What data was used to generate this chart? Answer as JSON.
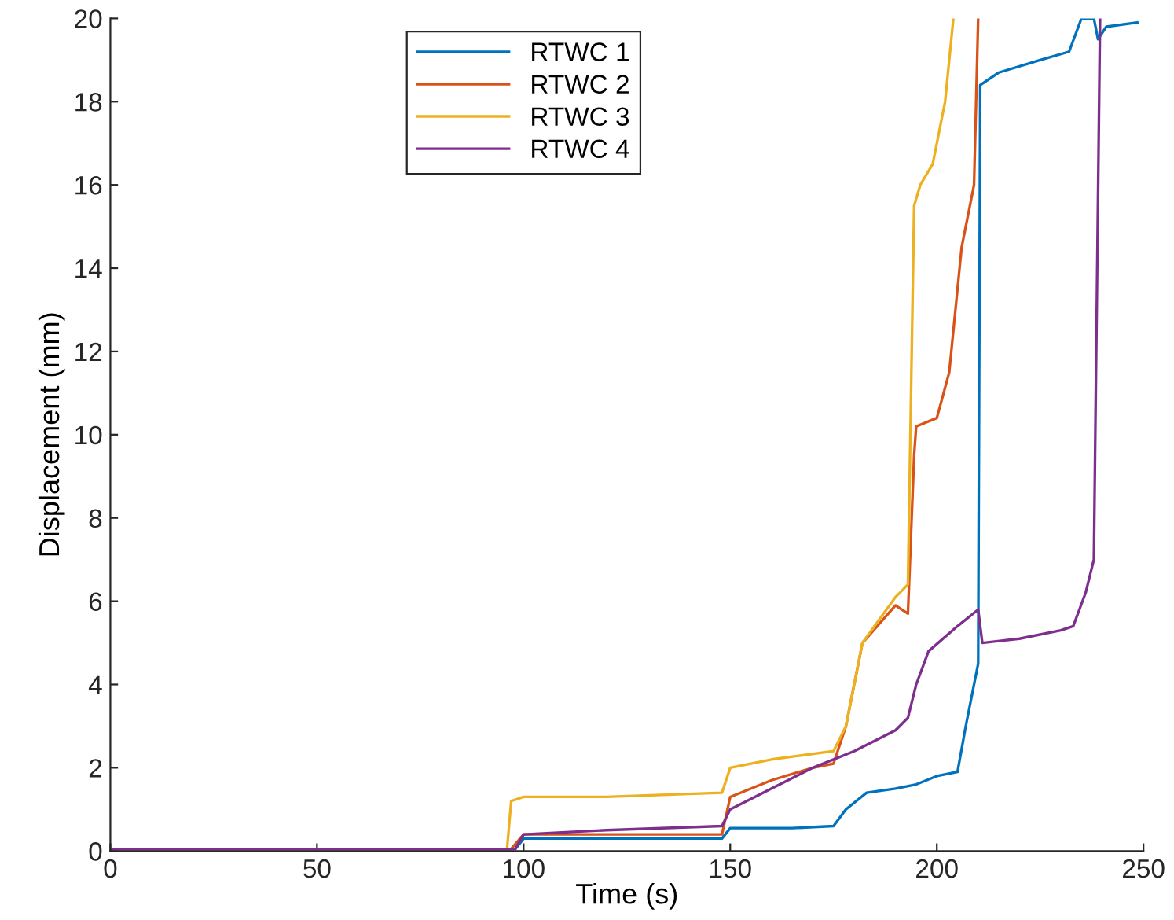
{
  "chart_data": {
    "type": "line",
    "xlabel": "Time (s)",
    "ylabel": "Displacement (mm)",
    "xlim": [
      0,
      250
    ],
    "ylim": [
      0,
      20
    ],
    "xticks": [
      0,
      50,
      100,
      150,
      200,
      250
    ],
    "yticks": [
      0,
      2,
      4,
      6,
      8,
      10,
      12,
      14,
      16,
      18,
      20
    ],
    "legend": "top",
    "grid": false,
    "marker": "none",
    "line_style": "solid",
    "series": [
      {
        "name": "RTWC 1",
        "color": "#0072bd",
        "x": [
          0,
          98,
          100,
          120,
          148,
          150,
          165,
          175,
          178,
          183,
          190,
          195,
          200,
          205,
          207,
          210,
          210.5,
          215,
          225,
          232,
          235,
          238,
          239,
          241,
          248.5
        ],
        "values": [
          0.05,
          0.05,
          0.3,
          0.3,
          0.3,
          0.55,
          0.55,
          0.6,
          1.0,
          1.4,
          1.5,
          1.6,
          1.8,
          1.9,
          3.0,
          4.5,
          18.4,
          18.7,
          19.0,
          19.2,
          20.0,
          20.0,
          19.5,
          19.8,
          19.9
        ]
      },
      {
        "name": "RTWC 2",
        "color": "#d95319",
        "x": [
          0,
          97,
          100,
          120,
          148,
          150,
          160,
          170,
          175,
          178,
          182,
          190,
          193,
          194.5,
          195,
          200,
          203,
          206,
          209,
          210
        ],
        "values": [
          0.05,
          0.05,
          0.4,
          0.4,
          0.4,
          1.3,
          1.7,
          2.0,
          2.1,
          3.0,
          5.0,
          5.9,
          5.7,
          9.5,
          10.2,
          10.4,
          11.5,
          14.5,
          16.0,
          20.0
        ]
      },
      {
        "name": "RTWC 3",
        "color": "#edb120",
        "x": [
          0,
          96,
          97,
          100,
          120,
          148,
          150,
          160,
          175,
          178,
          182,
          190,
          193,
          194.5,
          196,
          199,
          202,
          204
        ],
        "values": [
          0.05,
          0.05,
          1.2,
          1.3,
          1.3,
          1.4,
          2.0,
          2.2,
          2.4,
          3.0,
          5.0,
          6.1,
          6.4,
          15.5,
          16.0,
          16.5,
          18.0,
          20.0
        ]
      },
      {
        "name": "RTWC 4",
        "color": "#7e2f8e",
        "x": [
          0,
          50,
          98,
          100,
          120,
          148,
          150,
          160,
          170,
          180,
          190,
          193,
          195,
          198,
          205,
          210,
          211,
          220,
          230,
          233,
          236,
          238,
          239.5
        ],
        "values": [
          0.05,
          0.05,
          0.05,
          0.4,
          0.5,
          0.6,
          1.0,
          1.5,
          2.0,
          2.4,
          2.9,
          3.2,
          4.0,
          4.8,
          5.4,
          5.8,
          5.0,
          5.1,
          5.3,
          5.4,
          6.2,
          7.0,
          20.0
        ]
      }
    ]
  }
}
